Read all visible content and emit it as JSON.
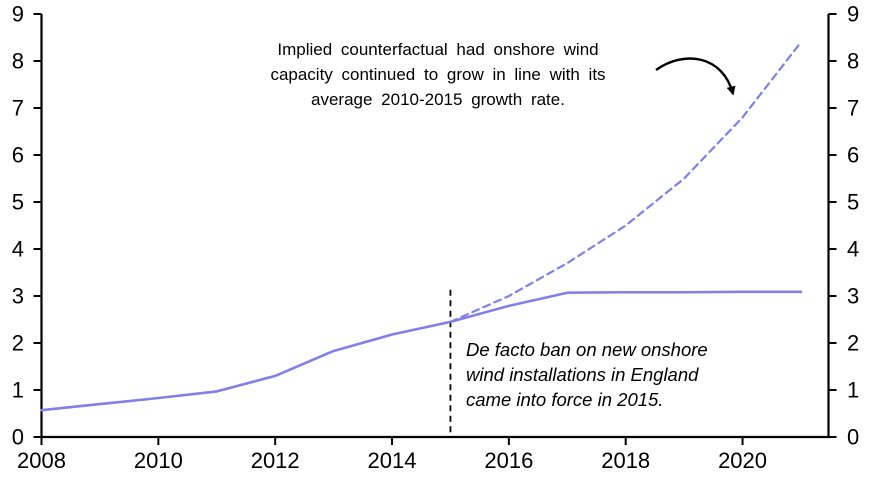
{
  "chart_data": {
    "type": "line",
    "title": "",
    "xlabel": "",
    "ylabel": "",
    "xlim": [
      2008,
      2021.5
    ],
    "ylim": [
      0,
      9
    ],
    "x_ticks": [
      2008,
      2010,
      2012,
      2014,
      2016,
      2018,
      2020
    ],
    "y_ticks": [
      0,
      1,
      2,
      3,
      4,
      5,
      6,
      7,
      8,
      9
    ],
    "y_axis_on_both_sides": true,
    "grid": false,
    "legend": "none",
    "accent_color": "#8080e8",
    "series": [
      {
        "name": "actual-onshore-wind-capacity",
        "style": "solid",
        "color": "#8080e8",
        "x": [
          2008,
          2009,
          2010,
          2011,
          2012,
          2013,
          2014,
          2015,
          2016,
          2017,
          2018,
          2019,
          2020,
          2021
        ],
        "values": [
          0.57,
          0.7,
          0.83,
          0.97,
          1.3,
          1.83,
          2.18,
          2.45,
          2.79,
          3.07,
          3.08,
          3.08,
          3.09,
          3.09
        ]
      },
      {
        "name": "implied-counterfactual",
        "style": "dashed",
        "color": "#8080e8",
        "x": [
          2015,
          2016,
          2017,
          2018,
          2019,
          2020,
          2021
        ],
        "values": [
          2.45,
          3.0,
          3.7,
          4.5,
          5.5,
          6.8,
          8.4
        ]
      }
    ],
    "event_line": {
      "x": 2015,
      "from": 0.1,
      "to": 3.2,
      "style": "dashed",
      "color": "#000000"
    },
    "annotations": {
      "counterfactual_note": "Implied counterfactual had onshore wind\ncapacity continued to grow in line with its\naverage 2010-2015 growth rate.",
      "ban_note": "De facto ban on new onshore\nwind installations in England\ncame into force in 2015."
    }
  }
}
